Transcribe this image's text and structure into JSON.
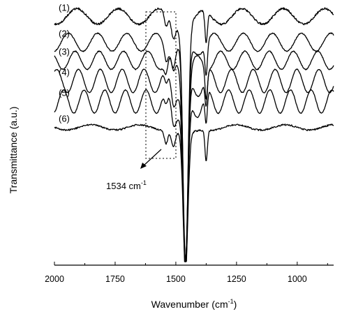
{
  "chart_data": {
    "type": "line",
    "xlabel": "Wavenumber (cm",
    "xlabel_sup": "-1",
    "xlabel_end": ")",
    "ylabel": "Transmittance (a.u.)",
    "xlim": [
      2000,
      850
    ],
    "x_reversed": true,
    "grid": false,
    "x_ticks": [
      2000,
      1750,
      1500,
      1250,
      1000
    ],
    "x_tick_labels": [
      "2000",
      "1750",
      "1500",
      "1250",
      "1000"
    ],
    "series": [
      {
        "name": "(1)",
        "baseline": 0.95,
        "amplitude": 0.03,
        "period": 170,
        "phase": 0.2,
        "dip_depth": 0.95,
        "noise": 0.008
      },
      {
        "name": "(2)",
        "baseline": 0.85,
        "amplitude": 0.035,
        "period": 120,
        "phase": 0.4,
        "dip_depth": 0.85,
        "noise": 0.004
      },
      {
        "name": "(3)",
        "baseline": 0.78,
        "amplitude": 0.035,
        "period": 100,
        "phase": 0.6,
        "dip_depth": 0.78,
        "noise": 0.004
      },
      {
        "name": "(4)",
        "baseline": 0.7,
        "amplitude": 0.045,
        "period": 90,
        "phase": 0.8,
        "dip_depth": 0.7,
        "noise": 0.003
      },
      {
        "name": "(5)",
        "baseline": 0.62,
        "amplitude": 0.045,
        "period": 85,
        "phase": 1.0,
        "dip_depth": 0.62,
        "noise": 0.003
      },
      {
        "name": "(6)",
        "baseline": 0.52,
        "amplitude": 0.01,
        "period": 200,
        "phase": 0.0,
        "dip_depth": 0.52,
        "noise": 0.006
      }
    ],
    "highlight_region": [
      1600,
      1490
    ],
    "annotation": {
      "text": "1534 cm",
      "sup": "-1",
      "x": 1534
    }
  }
}
